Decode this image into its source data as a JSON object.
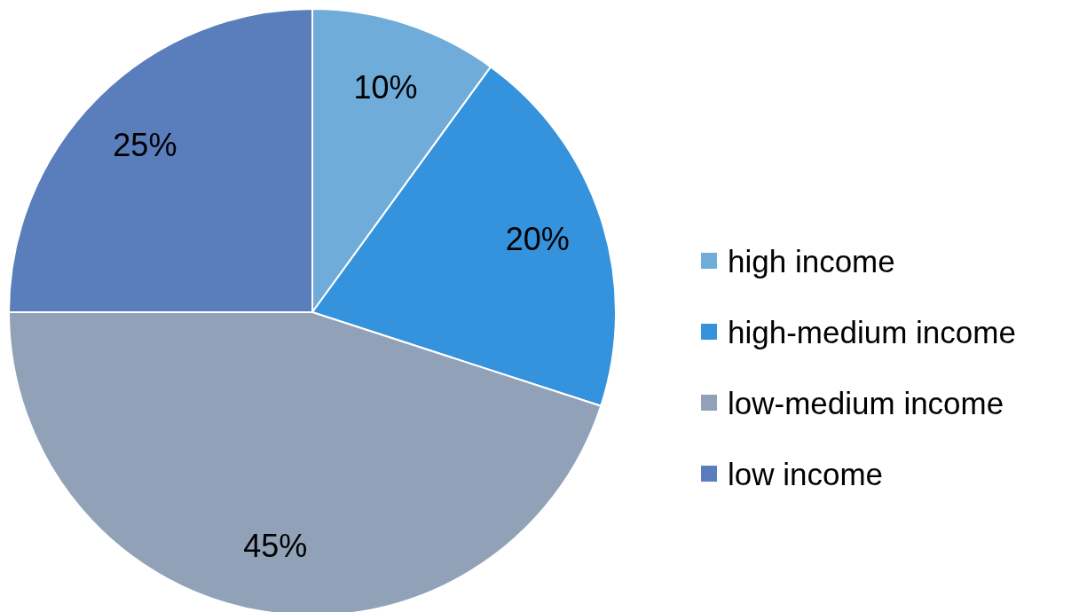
{
  "chart_data": {
    "type": "pie",
    "categories": [
      "high income",
      "high-medium income",
      "low-medium income",
      "low income"
    ],
    "values": [
      10,
      20,
      45,
      25
    ],
    "colors": [
      "#70acd9",
      "#3592dc",
      "#91a2b8",
      "#5a7dbb"
    ],
    "value_labels": [
      "10%",
      "20%",
      "45%",
      "25%"
    ],
    "legend": "right"
  }
}
